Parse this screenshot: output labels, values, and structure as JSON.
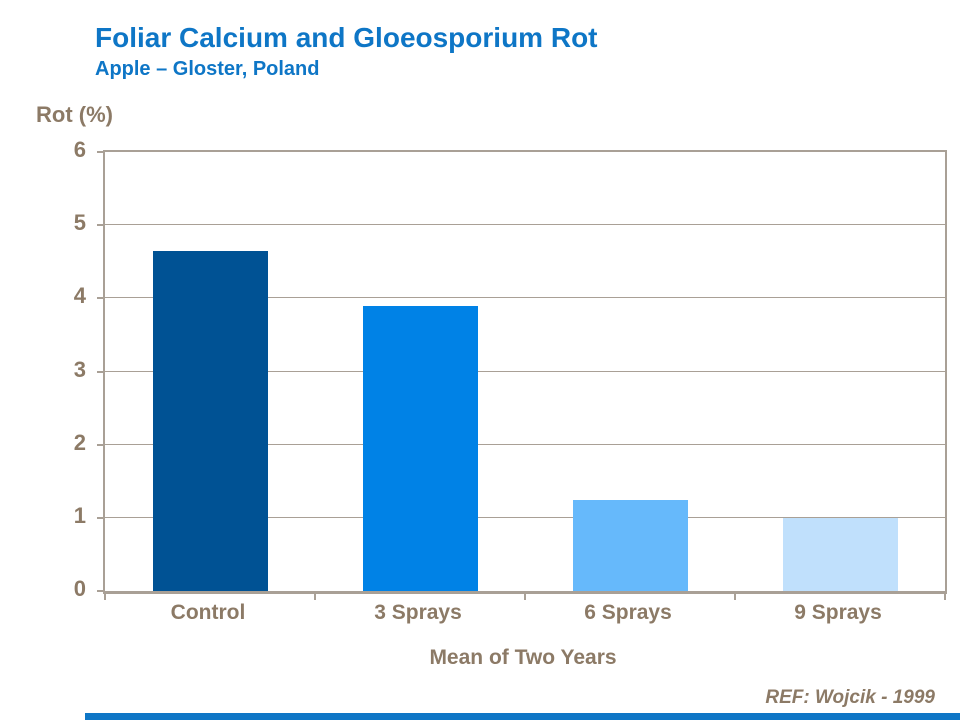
{
  "slide": {
    "title": "Foliar Calcium and Gloeosporium Rot",
    "subtitle": "Apple – Gloster, Poland",
    "ref": "REF: Wojcik - 1999"
  },
  "colors": {
    "title_blue": "#0E76C6",
    "axis_text": "#8C7A66",
    "frame": "#A9A096",
    "gridline": "#A9A096",
    "footer_bar": "#0E76C6"
  },
  "chart_data": {
    "type": "bar",
    "title": "Foliar Calcium and Gloeosporium Rot",
    "subtitle": "Apple – Gloster, Poland",
    "categories": [
      "Control",
      "3 Sprays",
      "6 Sprays",
      "9 Sprays"
    ],
    "values": [
      4.65,
      3.9,
      1.25,
      1.0
    ],
    "bar_colors": [
      "#005294",
      "#0082E6",
      "#66B9FB",
      "#C0E0FC"
    ],
    "xlabel": "Mean of Two Years",
    "ylabel": "Rot (%)",
    "ylim": [
      0,
      6
    ],
    "yticks": [
      0,
      1,
      2,
      3,
      4,
      5,
      6
    ],
    "grid": "horizontal",
    "legend": "none",
    "annotation": "REF: Wojcik - 1999"
  }
}
